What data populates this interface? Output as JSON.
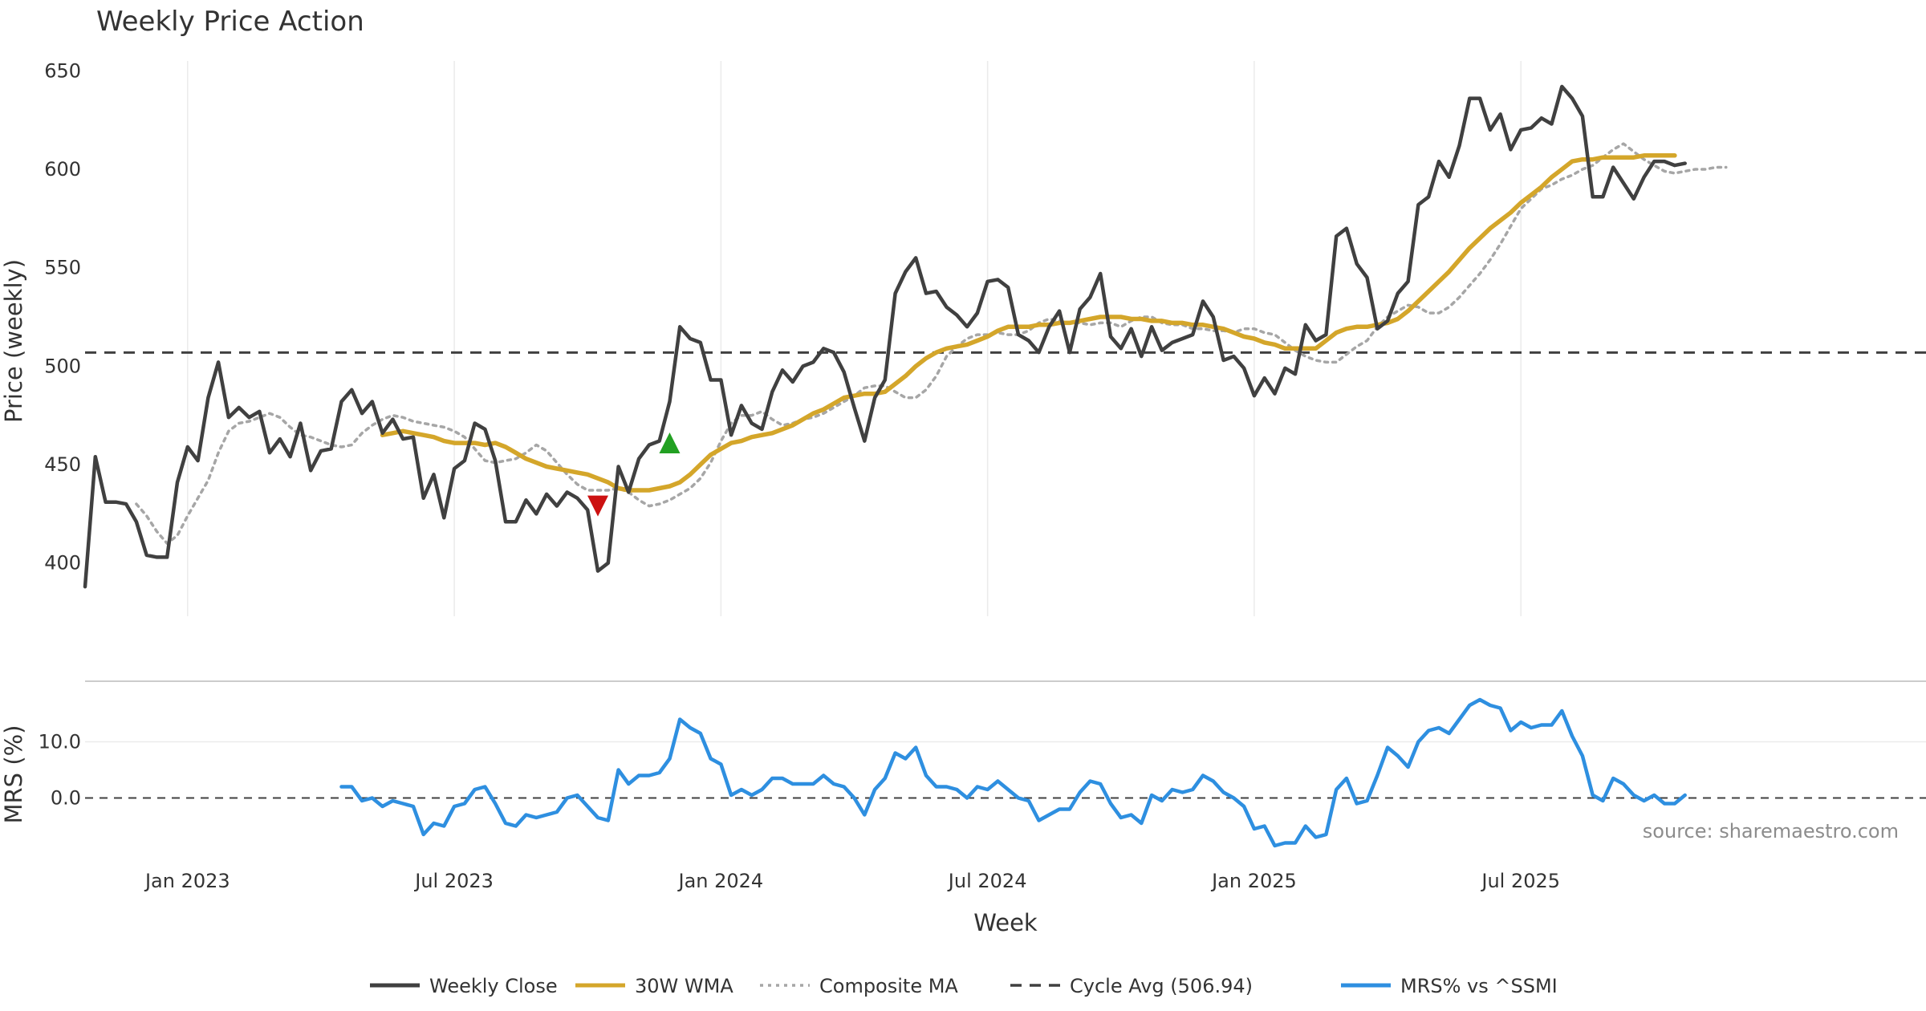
{
  "chart_data": [
    {
      "type": "line",
      "title": "Weekly Price Action",
      "xlabel": "",
      "ylabel": "Price (weekly)",
      "ylim": [
        373,
        655
      ],
      "yticks": [
        400,
        450,
        500,
        550,
        600,
        650
      ],
      "x_start": "2022-10-24",
      "x_step_days": 7,
      "cycle_avg": 506.94,
      "series": [
        {
          "name": "Weekly Close",
          "color": "#404040",
          "values": [
            388,
            454,
            431,
            431,
            430,
            421,
            404,
            403,
            403,
            441,
            459,
            452,
            484,
            502,
            474,
            479,
            474,
            477,
            456,
            463,
            454,
            471,
            447,
            457,
            458,
            482,
            488,
            476,
            482,
            466,
            473,
            463,
            464,
            433,
            445,
            423,
            448,
            452,
            471,
            468,
            452,
            421,
            421,
            432,
            425,
            435,
            429,
            436,
            433,
            427,
            396,
            400,
            449,
            436,
            453,
            460,
            462,
            482,
            520,
            514,
            512,
            493,
            493,
            465,
            480,
            471,
            468,
            487,
            498,
            492,
            500,
            502,
            509,
            507,
            497,
            479,
            462,
            484,
            493,
            537,
            548,
            555,
            537,
            538,
            530,
            526,
            520,
            527,
            543,
            544,
            540,
            516,
            513,
            507,
            520,
            528,
            507,
            529,
            535,
            547,
            515,
            509,
            519,
            505,
            520,
            508,
            512,
            514,
            516,
            533,
            525,
            503,
            505,
            499,
            485,
            494,
            486,
            499,
            496,
            521,
            513,
            516,
            566,
            570,
            552,
            545,
            519,
            523,
            537,
            543,
            582,
            586,
            604,
            596,
            612,
            636,
            636,
            620,
            628,
            610,
            620,
            621,
            626,
            623,
            642,
            636,
            627,
            586,
            586,
            601,
            593,
            585,
            596,
            604,
            604,
            602,
            603
          ]
        },
        {
          "name": "30W WMA",
          "color": "#d4a62a",
          "start_index": 29,
          "values": [
            465,
            466,
            467,
            466,
            465,
            464,
            462,
            461,
            461,
            461,
            460,
            461,
            459,
            456,
            453,
            451,
            449,
            448,
            447,
            446,
            445,
            443,
            441,
            438,
            437,
            437,
            437,
            438,
            439,
            441,
            445,
            450,
            455,
            458,
            461,
            462,
            464,
            465,
            466,
            468,
            470,
            473,
            476,
            478,
            481,
            484,
            485,
            486,
            486,
            487,
            491,
            495,
            500,
            504,
            507,
            509,
            510,
            511,
            513,
            515,
            518,
            520,
            520,
            520,
            521,
            521,
            522,
            522,
            523,
            524,
            525,
            525,
            525,
            524,
            524,
            523,
            523,
            522,
            522,
            521,
            521,
            520,
            519,
            517,
            515,
            514,
            512,
            511,
            509,
            509,
            509,
            509,
            513,
            517,
            519,
            520,
            520,
            521,
            522,
            524,
            528,
            533,
            538,
            543,
            548,
            554,
            560,
            565,
            570,
            574,
            578,
            583,
            587,
            591,
            596,
            600,
            604,
            605,
            605,
            606,
            606,
            606,
            606,
            607,
            607,
            607,
            607
          ]
        },
        {
          "name": "Composite MA",
          "color": "#a6a6a6",
          "start_index": 5,
          "values": [
            430,
            424,
            416,
            410,
            414,
            424,
            433,
            442,
            456,
            467,
            471,
            472,
            474,
            476,
            474,
            469,
            465,
            464,
            462,
            460,
            459,
            460,
            466,
            470,
            473,
            475,
            474,
            472,
            471,
            470,
            469,
            467,
            464,
            458,
            452,
            451,
            452,
            453,
            456,
            460,
            457,
            451,
            445,
            440,
            437,
            437,
            437,
            438,
            436,
            432,
            429,
            430,
            432,
            435,
            438,
            443,
            451,
            462,
            471,
            475,
            475,
            477,
            473,
            470,
            471,
            473,
            474,
            476,
            479,
            482,
            485,
            489,
            490,
            490,
            487,
            484,
            484,
            488,
            495,
            505,
            510,
            514,
            516,
            516,
            517,
            516,
            516,
            518,
            522,
            524,
            523,
            522,
            522,
            521,
            522,
            522,
            520,
            523,
            525,
            525,
            522,
            521,
            521,
            519,
            519,
            518,
            518,
            517,
            519,
            519,
            517,
            516,
            512,
            508,
            505,
            503,
            502,
            502,
            506,
            510,
            513,
            520,
            525,
            528,
            531,
            530,
            527,
            527,
            530,
            535,
            541,
            547,
            554,
            562,
            571,
            580,
            585,
            590,
            592,
            595,
            597,
            600,
            602,
            606,
            610,
            613,
            609,
            605,
            602,
            599,
            598,
            599,
            600,
            600,
            601,
            601
          ]
        }
      ],
      "markers": [
        {
          "kind": "sell",
          "index": 50,
          "value": 429,
          "color": "#cc1111"
        },
        {
          "kind": "buy",
          "index": 57,
          "value": 461,
          "color": "#22a022"
        }
      ]
    },
    {
      "type": "line",
      "xlabel": "Week",
      "ylabel": "MRS (%)",
      "ylim": [
        -11.5,
        19.5
      ],
      "yticks": [
        0.0,
        10.0
      ],
      "ytick_labels": [
        "0.0",
        "10.0"
      ],
      "zero_line": 0,
      "series": [
        {
          "name": "MRS% vs ^SSMI",
          "color": "#2e8fe0",
          "start_index": 25,
          "values": [
            2.0,
            2.0,
            -0.5,
            0.0,
            -1.5,
            -0.5,
            -1.0,
            -1.5,
            -6.5,
            -4.5,
            -5.0,
            -1.5,
            -1.0,
            1.5,
            2.0,
            -1.0,
            -4.5,
            -5.0,
            -3.0,
            -3.5,
            -3.0,
            -2.5,
            0.0,
            0.5,
            -1.5,
            -3.5,
            -4.0,
            5.0,
            2.5,
            4.0,
            4.0,
            4.5,
            7.0,
            14.0,
            12.5,
            11.5,
            7.0,
            6.0,
            0.5,
            1.5,
            0.5,
            1.5,
            3.5,
            3.5,
            2.5,
            2.5,
            2.5,
            4.0,
            2.5,
            2.0,
            0.0,
            -3.0,
            1.5,
            3.5,
            8.0,
            7.0,
            9.0,
            4.0,
            2.0,
            2.0,
            1.5,
            0.0,
            2.0,
            1.5,
            3.0,
            1.5,
            0.0,
            -0.5,
            -4.0,
            -3.0,
            -2.0,
            -2.0,
            1.0,
            3.0,
            2.5,
            -1.0,
            -3.5,
            -3.0,
            -4.5,
            0.5,
            -0.5,
            1.5,
            1.0,
            1.5,
            4.0,
            3.0,
            1.0,
            0.0,
            -1.5,
            -5.5,
            -5.0,
            -8.5,
            -8.0,
            -8.0,
            -5.0,
            -7.0,
            -6.5,
            1.5,
            3.5,
            -1.0,
            -0.5,
            4.0,
            9.0,
            7.5,
            5.5,
            10.0,
            12.0,
            12.5,
            11.5,
            14.0,
            16.5,
            17.5,
            16.5,
            16.0,
            12.0,
            13.5,
            12.5,
            13.0,
            13.0,
            15.5,
            11.0,
            7.5,
            0.5,
            -0.5,
            3.5,
            2.5,
            0.5,
            -0.5,
            0.5,
            -1.0,
            -1.0,
            0.5
          ]
        }
      ],
      "source": "source: sharemaestro.com"
    }
  ],
  "x_axis": {
    "ticks": [
      {
        "label": "Jan 2023",
        "index": 10
      },
      {
        "label": "Jul 2023",
        "index": 36
      },
      {
        "label": "Jan 2024",
        "index": 62
      },
      {
        "label": "Jul 2024",
        "index": 88
      },
      {
        "label": "Jan 2025",
        "index": 114
      },
      {
        "label": "Jul 2025",
        "index": 140
      }
    ]
  },
  "legend": {
    "position": "bottom-center",
    "items": [
      {
        "label": "Weekly Close",
        "color": "#404040",
        "style": "solid"
      },
      {
        "label": "30W WMA",
        "color": "#d4a62a",
        "style": "solid"
      },
      {
        "label": "Composite MA",
        "color": "#a6a6a6",
        "style": "dotted"
      },
      {
        "label": "Cycle Avg (506.94)",
        "color": "#404040",
        "style": "dashed"
      },
      {
        "label": "MRS% vs ^SSMI",
        "color": "#2e8fe0",
        "style": "solid"
      }
    ]
  }
}
